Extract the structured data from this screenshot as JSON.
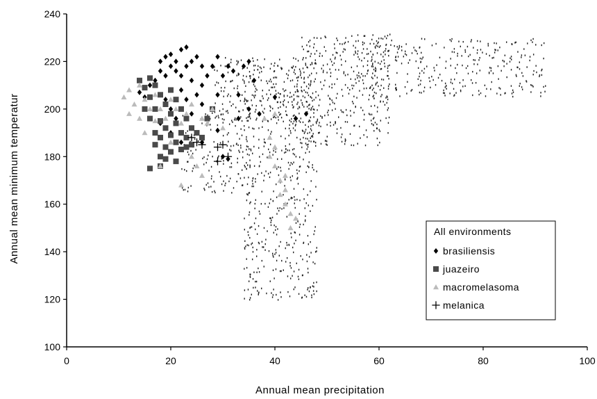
{
  "chart_data": {
    "type": "scatter",
    "xlabel": "Annual mean precipitation",
    "ylabel": "Annual mean minimum temperatur",
    "xlim": [
      0,
      100
    ],
    "ylim": [
      100,
      240
    ],
    "x_ticks": [
      0,
      20,
      40,
      60,
      80,
      100
    ],
    "y_ticks": [
      100,
      120,
      140,
      160,
      180,
      200,
      220,
      240
    ],
    "grid": false,
    "legend_position": "bottom-right",
    "legend_title": "All environments",
    "series": [
      {
        "name": "brasiliensis",
        "marker": "diamond",
        "color": "#000000",
        "points": [
          [
            14,
            207
          ],
          [
            15,
            205
          ],
          [
            16,
            210
          ],
          [
            17,
            212
          ],
          [
            18,
            216
          ],
          [
            18,
            220
          ],
          [
            19,
            222
          ],
          [
            19,
            214
          ],
          [
            20,
            218
          ],
          [
            20,
            223
          ],
          [
            21,
            216
          ],
          [
            21,
            220
          ],
          [
            22,
            225
          ],
          [
            22,
            214
          ],
          [
            23,
            218
          ],
          [
            23,
            226
          ],
          [
            24,
            220
          ],
          [
            24,
            212
          ],
          [
            25,
            222
          ],
          [
            26,
            218
          ],
          [
            26,
            210
          ],
          [
            27,
            214
          ],
          [
            28,
            218
          ],
          [
            29,
            222
          ],
          [
            29,
            206
          ],
          [
            30,
            214
          ],
          [
            31,
            218
          ],
          [
            32,
            216
          ],
          [
            33,
            206
          ],
          [
            34,
            218
          ],
          [
            35,
            220
          ],
          [
            36,
            212
          ],
          [
            19,
            204
          ],
          [
            20,
            200
          ],
          [
            21,
            196
          ],
          [
            22,
            208
          ],
          [
            23,
            204
          ],
          [
            24,
            198
          ],
          [
            25,
            206
          ],
          [
            26,
            202
          ],
          [
            27,
            196
          ],
          [
            28,
            200
          ],
          [
            29,
            191
          ],
          [
            30,
            180
          ],
          [
            31,
            179
          ],
          [
            33,
            196
          ],
          [
            35,
            200
          ],
          [
            37,
            198
          ],
          [
            40,
            205
          ],
          [
            44,
            196
          ],
          [
            46,
            198
          ],
          [
            18,
            194
          ],
          [
            20,
            190
          ],
          [
            22,
            186
          ],
          [
            24,
            192
          ],
          [
            26,
            186
          ],
          [
            17,
            200
          ]
        ]
      },
      {
        "name": "juazeiro",
        "marker": "square",
        "color": "#4a4a4a",
        "points": [
          [
            14,
            212
          ],
          [
            15,
            209
          ],
          [
            16,
            213
          ],
          [
            16,
            205
          ],
          [
            17,
            210
          ],
          [
            17,
            200
          ],
          [
            17,
            190
          ],
          [
            17,
            185
          ],
          [
            18,
            206
          ],
          [
            18,
            195
          ],
          [
            18,
            188
          ],
          [
            18,
            180
          ],
          [
            19,
            202
          ],
          [
            19,
            192
          ],
          [
            19,
            184
          ],
          [
            20,
            208
          ],
          [
            20,
            198
          ],
          [
            20,
            189
          ],
          [
            20,
            182
          ],
          [
            21,
            204
          ],
          [
            21,
            194
          ],
          [
            21,
            186
          ],
          [
            22,
            200
          ],
          [
            22,
            190
          ],
          [
            22,
            183
          ],
          [
            23,
            196
          ],
          [
            23,
            188
          ],
          [
            24,
            192
          ],
          [
            24,
            185
          ],
          [
            25,
            190
          ],
          [
            26,
            188
          ],
          [
            16,
            175
          ],
          [
            18,
            176
          ],
          [
            19,
            179
          ],
          [
            21,
            178
          ],
          [
            23,
            184
          ],
          [
            15,
            200
          ],
          [
            16,
            196
          ],
          [
            27,
            196
          ],
          [
            28,
            200
          ]
        ]
      },
      {
        "name": "macromelasoma",
        "marker": "triangle",
        "color": "#bbbbbb",
        "points": [
          [
            11,
            205
          ],
          [
            12,
            208
          ],
          [
            12,
            198
          ],
          [
            13,
            202
          ],
          [
            14,
            210
          ],
          [
            14,
            196
          ],
          [
            15,
            204
          ],
          [
            16,
            200
          ],
          [
            17,
            206
          ],
          [
            18,
            200
          ],
          [
            19,
            196
          ],
          [
            20,
            204
          ],
          [
            21,
            200
          ],
          [
            22,
            194
          ],
          [
            23,
            198
          ],
          [
            24,
            202
          ],
          [
            26,
            196
          ],
          [
            27,
            194
          ],
          [
            28,
            200
          ],
          [
            30,
            192
          ],
          [
            24,
            180
          ],
          [
            25,
            176
          ],
          [
            26,
            172
          ],
          [
            22,
            168
          ],
          [
            18,
            176
          ],
          [
            20,
            186
          ],
          [
            38,
            196
          ],
          [
            39,
            188
          ],
          [
            40,
            184
          ],
          [
            40,
            176
          ],
          [
            41,
            170
          ],
          [
            41,
            164
          ],
          [
            42,
            166
          ],
          [
            42,
            160
          ],
          [
            43,
            156
          ],
          [
            43,
            150
          ],
          [
            44,
            154
          ],
          [
            40,
            198
          ],
          [
            39,
            180
          ],
          [
            42,
            172
          ],
          [
            17,
            195
          ],
          [
            15,
            190
          ]
        ]
      },
      {
        "name": "melanica",
        "marker": "plus",
        "color": "#000000",
        "points": [
          [
            24,
            188
          ],
          [
            25,
            186
          ],
          [
            26,
            185
          ],
          [
            29,
            184
          ],
          [
            29,
            178
          ],
          [
            30,
            185
          ],
          [
            31,
            180
          ]
        ]
      }
    ]
  }
}
